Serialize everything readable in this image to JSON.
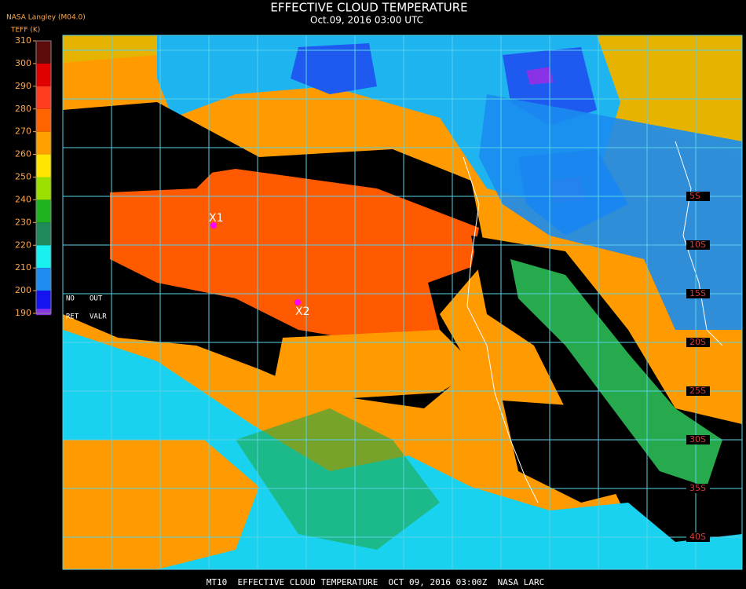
{
  "header": {
    "title": "EFFECTIVE CLOUD TEMPERATURE",
    "subtitle": "Oct.09, 2016 03:00 UTC",
    "source": "NASA Langley (M04.0)",
    "unit": "TEFF (K)"
  },
  "legend": {
    "ticks": [
      310,
      300,
      290,
      280,
      270,
      260,
      250,
      240,
      230,
      220,
      210,
      200,
      190
    ],
    "colors": [
      "#5c0a0a",
      "#e00000",
      "#ff3c1e",
      "#ff6400",
      "#ff9f00",
      "#ffe600",
      "#9be000",
      "#1fb41f",
      "#1e8a5a",
      "#19f0f0",
      "#1e8cf0",
      "#1414f0"
    ],
    "notes": [
      "NO",
      "OUT",
      "RET",
      "VALR"
    ]
  },
  "map": {
    "markers": [
      {
        "label": "X1",
        "color": "#ff00ff"
      },
      {
        "label": "X2",
        "color": "#ff00ff"
      }
    ],
    "lat_labels": [
      "5S",
      "10S",
      "15S",
      "20S",
      "25S",
      "30S",
      "35S",
      "40S"
    ]
  },
  "footer": "MT10  EFFECTIVE CLOUD TEMPERATURE  OCT 09, 2016 03:00Z  NASA LARC"
}
